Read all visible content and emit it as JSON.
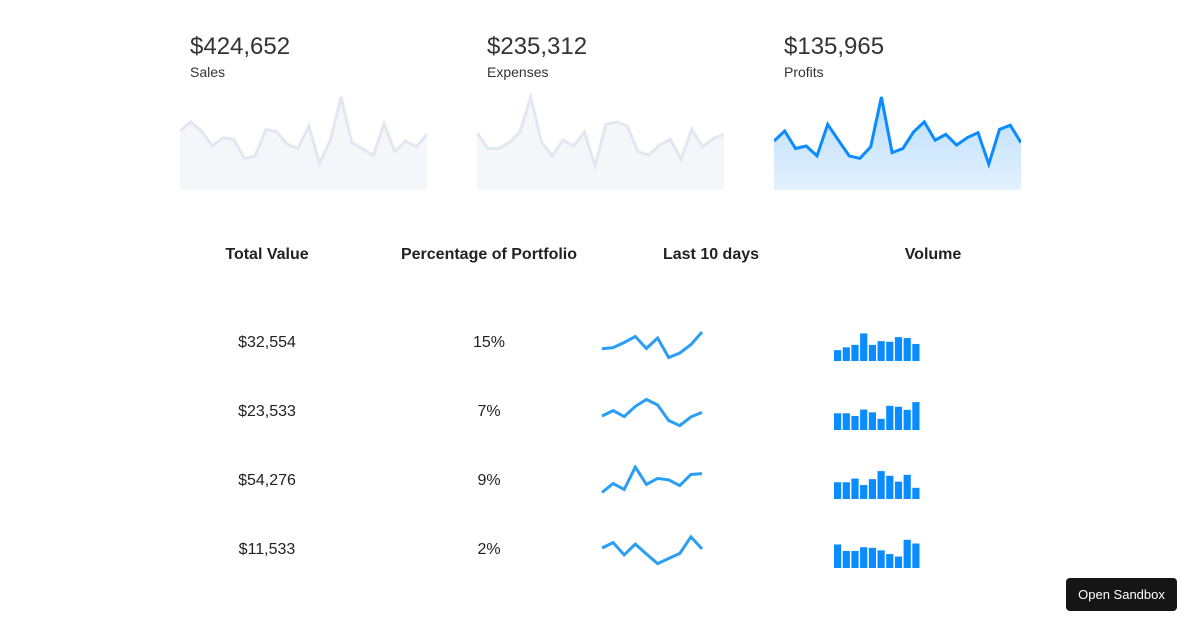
{
  "colors": {
    "accent": "#0a8cff",
    "line": "#2a9df4",
    "muted_line": "#e1e8ef",
    "muted_fill": "#f4f6f9",
    "fill_top": "#b9dcfb",
    "fill_bottom": "#e3f1fe"
  },
  "cards": [
    {
      "value": "$424,652",
      "label": "Sales",
      "active": false
    },
    {
      "value": "$235,312",
      "label": "Expenses",
      "active": false
    },
    {
      "value": "$135,965",
      "label": "Profits",
      "active": true
    }
  ],
  "table": {
    "headers": [
      "Total Value",
      "Percentage of Portfolio",
      "Last 10 days",
      "Volume"
    ],
    "rows": [
      {
        "total": "$32,554",
        "percent": "15%"
      },
      {
        "total": "$23,533",
        "percent": "7%"
      },
      {
        "total": "$54,276",
        "percent": "9%"
      },
      {
        "total": "$11,533",
        "percent": "2%"
      }
    ]
  },
  "button": {
    "label": "Open Sandbox"
  },
  "chart_data": [
    {
      "type": "area",
      "name": "Sales",
      "values": [
        59,
        70,
        59,
        41,
        51,
        49,
        26,
        29,
        61,
        58,
        43,
        38,
        65,
        20,
        48,
        100,
        45,
        38,
        29,
        68,
        34,
        47,
        40,
        55
      ]
    },
    {
      "type": "area",
      "name": "Expenses",
      "values": [
        57,
        38,
        38,
        45,
        58,
        100,
        46,
        29,
        48,
        41,
        58,
        17,
        67,
        70,
        65,
        34,
        30,
        42,
        49,
        25,
        61,
        40,
        50,
        55
      ]
    },
    {
      "type": "area",
      "name": "Profits",
      "values": [
        47,
        59,
        38,
        41,
        29,
        67,
        48,
        29,
        26,
        40,
        100,
        33,
        38,
        58,
        70,
        48,
        55,
        42,
        51,
        57,
        19,
        61,
        66,
        45
      ]
    },
    {
      "type": "line",
      "rows": [
        [
          34,
          38,
          55,
          75,
          35,
          70,
          5,
          20,
          48,
          90
        ],
        [
          40,
          58,
          38,
          72,
          95,
          77,
          25,
          8,
          37,
          52
        ],
        [
          15,
          45,
          25,
          100,
          42,
          62,
          57,
          38,
          75,
          78
        ],
        [
          60,
          78,
          37,
          73,
          40,
          8,
          25,
          42,
          97,
          57
        ]
      ]
    },
    {
      "type": "bar",
      "rows": [
        [
          35,
          44,
          52,
          89,
          52,
          64,
          62,
          77,
          74,
          55
        ],
        [
          54,
          54,
          45,
          66,
          57,
          36,
          78,
          75,
          65,
          90
        ],
        [
          54,
          54,
          66,
          45,
          64,
          90,
          75,
          56,
          78,
          36
        ],
        [
          76,
          55,
          55,
          67,
          65,
          57,
          45,
          37,
          91,
          79
        ]
      ]
    }
  ]
}
